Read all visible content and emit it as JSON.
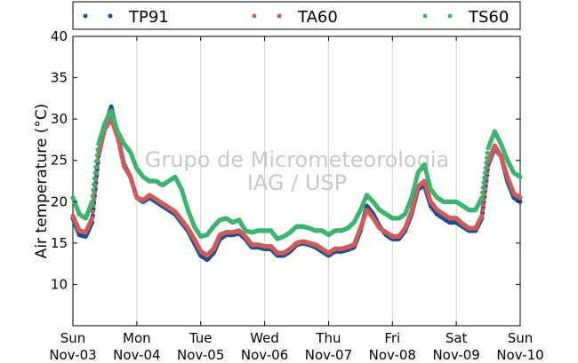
{
  "chart_data": {
    "type": "scatter",
    "title": "",
    "xlabel": "",
    "ylabel": "Air temperature (°C)",
    "ylim": [
      5,
      40
    ],
    "yticks": [
      10,
      15,
      20,
      25,
      30,
      35,
      40
    ],
    "xlim": [
      0,
      7
    ],
    "x_unit": "days since Sun Nov-03 00:00",
    "xticks": [
      {
        "day": "Sun",
        "date": "Nov-03"
      },
      {
        "day": "Mon",
        "date": "Nov-04"
      },
      {
        "day": "Tue",
        "date": "Nov-05"
      },
      {
        "day": "Wed",
        "date": "Nov-06"
      },
      {
        "day": "Thu",
        "date": "Nov-07"
      },
      {
        "day": "Fri",
        "date": "Nov-08"
      },
      {
        "day": "Sat",
        "date": "Nov-09"
      },
      {
        "day": "Sun",
        "date": "Nov-10"
      }
    ],
    "grid": "vertical",
    "legend_position": "top",
    "watermark": [
      "Grupo de Micrometeorologia",
      "IAG / USP"
    ],
    "x": [
      0.0,
      0.1,
      0.2,
      0.3,
      0.4,
      0.5,
      0.6,
      0.7,
      0.8,
      0.9,
      1.0,
      1.1,
      1.2,
      1.3,
      1.4,
      1.5,
      1.6,
      1.7,
      1.8,
      1.9,
      2.0,
      2.1,
      2.2,
      2.3,
      2.4,
      2.5,
      2.6,
      2.7,
      2.8,
      2.9,
      3.0,
      3.1,
      3.2,
      3.3,
      3.4,
      3.5,
      3.6,
      3.7,
      3.8,
      3.9,
      4.0,
      4.1,
      4.2,
      4.3,
      4.4,
      4.5,
      4.6,
      4.7,
      4.8,
      4.9,
      5.0,
      5.1,
      5.2,
      5.3,
      5.4,
      5.5,
      5.6,
      5.7,
      5.8,
      5.9,
      6.0,
      6.1,
      6.2,
      6.3,
      6.4,
      6.5,
      6.6,
      6.7,
      6.8,
      6.9,
      7.0
    ],
    "series": [
      {
        "name": "TP91",
        "color": "#1f4e8c",
        "values": [
          18.0,
          16.0,
          15.8,
          17.5,
          25.5,
          29.0,
          31.5,
          28.0,
          24.5,
          23.0,
          20.5,
          20.0,
          20.5,
          20.0,
          19.5,
          19.0,
          18.5,
          17.5,
          16.5,
          15.0,
          13.5,
          13.0,
          13.8,
          15.5,
          16.0,
          16.0,
          16.2,
          15.5,
          14.5,
          14.5,
          14.3,
          14.3,
          13.5,
          13.5,
          14.0,
          14.8,
          15.0,
          14.8,
          14.5,
          14.0,
          13.5,
          14.0,
          14.0,
          14.2,
          14.5,
          16.5,
          19.5,
          18.5,
          17.0,
          16.0,
          15.5,
          15.5,
          16.5,
          18.5,
          21.5,
          22.0,
          19.5,
          18.5,
          18.0,
          17.5,
          17.5,
          17.0,
          16.5,
          16.5,
          18.0,
          24.5,
          26.5,
          25.5,
          22.5,
          20.5,
          20.0
        ]
      },
      {
        "name": "TA60",
        "color": "#cd5c5c",
        "values": [
          18.3,
          16.5,
          16.3,
          18.0,
          25.8,
          28.8,
          30.0,
          27.8,
          24.3,
          23.0,
          20.5,
          20.2,
          20.8,
          20.3,
          19.8,
          19.3,
          18.8,
          17.8,
          16.8,
          15.5,
          14.0,
          13.5,
          14.3,
          16.0,
          16.3,
          16.3,
          16.5,
          15.8,
          14.8,
          14.8,
          14.6,
          14.6,
          13.8,
          13.8,
          14.3,
          15.0,
          15.2,
          15.0,
          14.8,
          14.3,
          13.8,
          14.3,
          14.3,
          14.5,
          14.8,
          16.8,
          19.0,
          18.0,
          16.8,
          16.3,
          15.8,
          15.8,
          16.8,
          18.8,
          21.8,
          22.5,
          20.0,
          19.0,
          18.5,
          18.0,
          18.0,
          17.3,
          16.8,
          16.8,
          18.3,
          24.8,
          26.8,
          25.5,
          23.0,
          21.0,
          20.5
        ]
      },
      {
        "name": "TS60",
        "color": "#3cb371",
        "values": [
          20.5,
          18.5,
          18.0,
          20.0,
          27.0,
          29.5,
          31.0,
          28.5,
          27.0,
          26.0,
          24.0,
          23.0,
          22.5,
          22.5,
          22.0,
          22.5,
          23.0,
          21.5,
          19.0,
          17.0,
          15.8,
          16.0,
          17.0,
          17.8,
          18.0,
          17.5,
          17.8,
          16.5,
          16.3,
          16.5,
          16.5,
          16.5,
          15.5,
          15.8,
          16.3,
          17.0,
          17.0,
          16.8,
          16.5,
          16.5,
          16.0,
          16.5,
          16.5,
          16.8,
          17.5,
          19.0,
          20.8,
          20.0,
          19.0,
          18.5,
          18.0,
          18.0,
          18.5,
          20.5,
          23.5,
          24.5,
          21.5,
          20.5,
          20.0,
          20.0,
          20.0,
          19.5,
          19.0,
          19.0,
          20.5,
          26.5,
          28.5,
          27.0,
          25.0,
          23.5,
          23.0
        ]
      }
    ]
  }
}
